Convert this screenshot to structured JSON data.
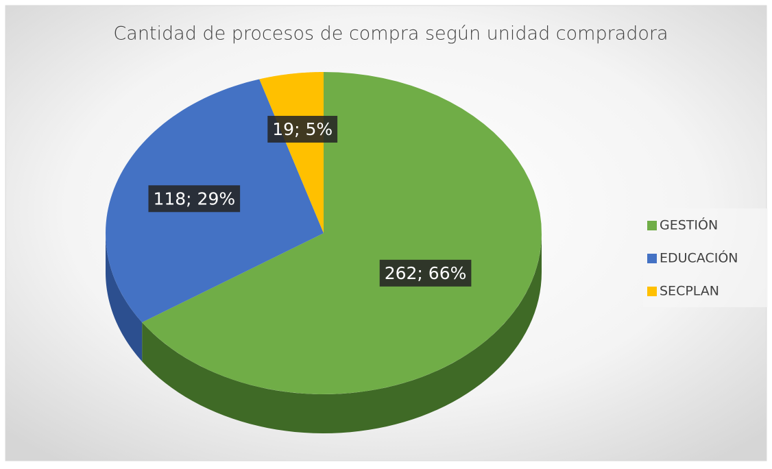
{
  "chart_data": {
    "type": "pie",
    "title": "Cantidad de procesos de compra según unidad compradora",
    "categories": [
      "GESTIÓN",
      "EDUCACIÓN",
      "SECPLAN"
    ],
    "values": [
      262,
      118,
      19
    ],
    "value_labels": [
      "262; 66%",
      "118; 29%",
      "19; 5%"
    ],
    "colors": [
      "#70ad47",
      "#4472c4",
      "#ffc000"
    ],
    "side_colors": [
      "#3f6a26",
      "#2c4f8f",
      "#b38600"
    ],
    "legend": "right"
  }
}
